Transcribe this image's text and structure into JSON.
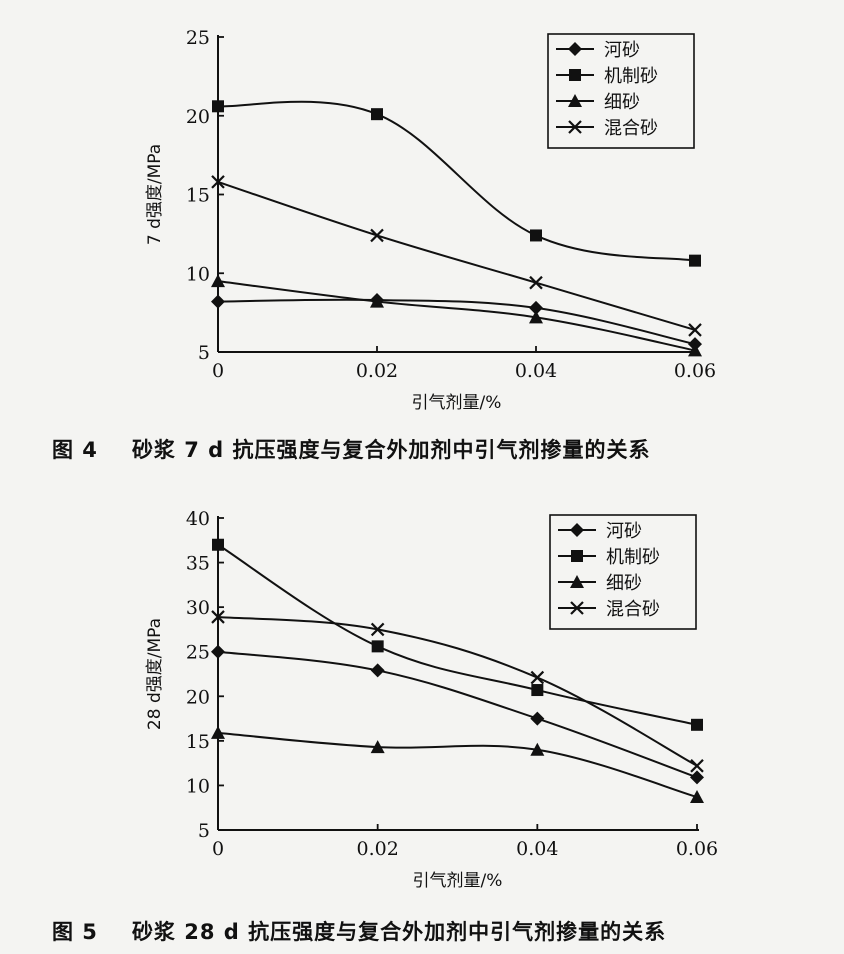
{
  "figures": [
    {
      "caption_number": "图 4",
      "caption_text": "砂浆 7 d 抗压强度与复合外加剂中引气剂掺量的关系"
    },
    {
      "caption_number": "图 5",
      "caption_text": "砂浆 28 d 抗压强度与复合外加剂中引气剂掺量的关系"
    }
  ],
  "chart_data": [
    {
      "type": "line",
      "xlabel": "引气剂量/%",
      "ylabel": "7 d强度/MPa",
      "x": [
        0,
        0.02,
        0.04,
        0.06
      ],
      "x_tick_labels": [
        "0",
        "0.02",
        "0.04",
        "0.06"
      ],
      "xlim": [
        0,
        0.06
      ],
      "ylim": [
        5,
        25
      ],
      "y_ticks": [
        5,
        10,
        15,
        20,
        25
      ],
      "legend_position": "top-right",
      "grid": false,
      "series": [
        {
          "name": "河砂",
          "marker": "diamond",
          "values": [
            8.2,
            8.3,
            7.8,
            5.5
          ]
        },
        {
          "name": "机制砂",
          "marker": "square",
          "values": [
            20.6,
            20.1,
            12.4,
            10.8
          ]
        },
        {
          "name": "细砂",
          "marker": "triangle",
          "values": [
            9.5,
            8.2,
            7.2,
            5.1
          ]
        },
        {
          "name": "混合砂",
          "marker": "x",
          "values": [
            15.8,
            12.4,
            9.4,
            6.4
          ]
        }
      ]
    },
    {
      "type": "line",
      "xlabel": "引气剂量/%",
      "ylabel": "28 d强度/MPa",
      "x": [
        0,
        0.02,
        0.04,
        0.06
      ],
      "x_tick_labels": [
        "0",
        "0.02",
        "0.04",
        "0.06"
      ],
      "xlim": [
        0,
        0.06
      ],
      "ylim": [
        5,
        40
      ],
      "y_ticks": [
        5,
        10,
        15,
        20,
        25,
        30,
        35,
        40
      ],
      "legend_position": "top-right",
      "grid": false,
      "series": [
        {
          "name": "河砂",
          "marker": "diamond",
          "values": [
            25.0,
            22.9,
            17.5,
            10.9
          ]
        },
        {
          "name": "机制砂",
          "marker": "square",
          "values": [
            37.0,
            25.6,
            20.7,
            16.8
          ]
        },
        {
          "name": "细砂",
          "marker": "triangle",
          "values": [
            15.9,
            14.3,
            14.0,
            8.7
          ]
        },
        {
          "name": "混合砂",
          "marker": "x",
          "values": [
            28.9,
            27.5,
            22.1,
            12.2
          ]
        }
      ]
    }
  ]
}
